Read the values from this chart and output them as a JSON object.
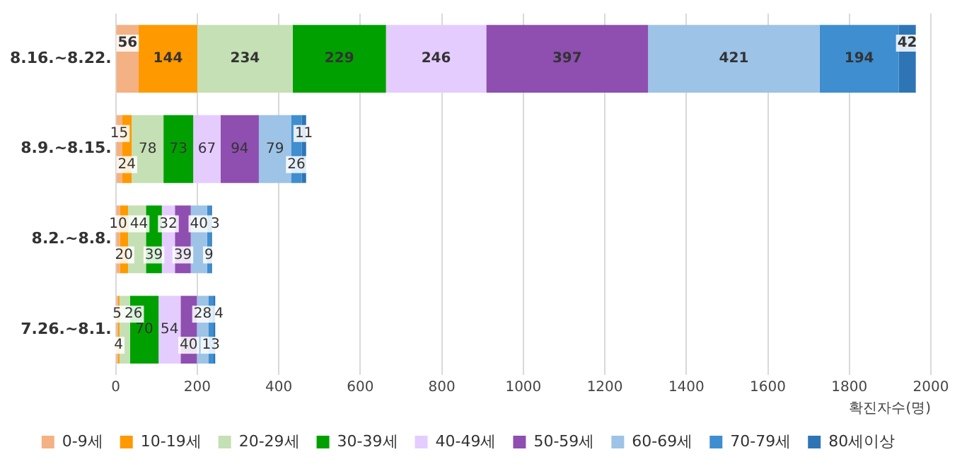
{
  "chart_data": {
    "type": "bar",
    "orientation": "horizontal",
    "stacked": true,
    "categories": [
      "8.16.~8.22.",
      "8.9.~8.15.",
      "8.2.~8.8.",
      "7.26.~8.1."
    ],
    "xlabel": "확진자수(명)",
    "xlim": [
      0,
      2000
    ],
    "xticks": [
      0,
      200,
      400,
      600,
      800,
      1000,
      1200,
      1400,
      1600,
      1800,
      2000
    ],
    "grid": "x",
    "legend": "bottom",
    "data_labels": true,
    "series": [
      {
        "name": "0-9세",
        "color": "#f4b183",
        "values": [
          56,
          15,
          10,
          5
        ]
      },
      {
        "name": "10-19세",
        "color": "#ff9900",
        "values": [
          144,
          24,
          20,
          4
        ]
      },
      {
        "name": "20-29세",
        "color": "#c5e0b4",
        "values": [
          234,
          78,
          44,
          26
        ]
      },
      {
        "name": "30-39세",
        "color": "#00a000",
        "values": [
          229,
          73,
          39,
          70
        ]
      },
      {
        "name": "40-49세",
        "color": "#e5ccff",
        "values": [
          246,
          67,
          32,
          54
        ]
      },
      {
        "name": "50-59세",
        "color": "#8e4fb0",
        "values": [
          397,
          94,
          39,
          40
        ]
      },
      {
        "name": "60-69세",
        "color": "#9dc3e6",
        "values": [
          421,
          79,
          40,
          28
        ]
      },
      {
        "name": "70-79세",
        "color": "#3e8ed0",
        "values": [
          194,
          26,
          9,
          13
        ]
      },
      {
        "name": "80세이상",
        "color": "#2e75b6",
        "values": [
          42,
          11,
          3,
          4
        ]
      }
    ]
  }
}
